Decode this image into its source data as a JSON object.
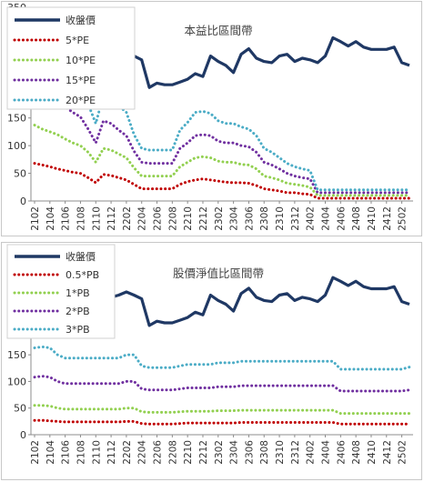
{
  "chart_data": [
    {
      "type": "line",
      "title": "本益比區間帶",
      "ylim": [
        0,
        350
      ],
      "yticks": [
        0,
        50,
        100,
        150,
        200,
        250,
        300,
        350
      ],
      "grid": false,
      "legend_placement": "top-left",
      "x": [
        "2102",
        "2103",
        "2104",
        "2105",
        "2106",
        "2107",
        "2108",
        "2109",
        "2110",
        "2111",
        "2112",
        "2201",
        "2202",
        "2203",
        "2204",
        "2205",
        "2206",
        "2207",
        "2208",
        "2209",
        "2210",
        "2211",
        "2212",
        "2301",
        "2302",
        "2303",
        "2304",
        "2305",
        "2306",
        "2307",
        "2308",
        "2309",
        "2310",
        "2311",
        "2312",
        "2401",
        "2402",
        "2403",
        "2404",
        "2405",
        "2406",
        "2407",
        "2408",
        "2409",
        "2410",
        "2411",
        "2412",
        "2501",
        "2502",
        "2503"
      ],
      "xticks": [
        "2102",
        "2104",
        "2106",
        "2108",
        "2110",
        "2112",
        "2202",
        "2204",
        "2206",
        "2208",
        "2210",
        "2212",
        "2302",
        "2304",
        "2306",
        "2308",
        "2310",
        "2312",
        "2402",
        "2404",
        "2406",
        "2408",
        "2410",
        "2412",
        "2502"
      ],
      "series": [
        {
          "name": "收盤價",
          "color": "#1f3864",
          "style": "solid",
          "values": [
            258,
            262,
            268,
            265,
            263,
            262,
            260,
            258,
            255,
            262,
            258,
            262,
            268,
            262,
            255,
            205,
            213,
            210,
            210,
            215,
            220,
            230,
            225,
            262,
            252,
            245,
            232,
            265,
            275,
            258,
            252,
            250,
            262,
            265,
            252,
            258,
            255,
            250,
            262,
            295,
            288,
            280,
            288,
            278,
            274,
            274,
            274,
            278,
            250,
            245
          ]
        },
        {
          "name": "5*PE",
          "color": "#c00000",
          "style": "dotted",
          "values": [
            68,
            65,
            62,
            58,
            55,
            52,
            50,
            42,
            33,
            48,
            46,
            42,
            38,
            30,
            22,
            22,
            22,
            22,
            22,
            30,
            35,
            38,
            40,
            38,
            36,
            34,
            33,
            33,
            32,
            28,
            22,
            20,
            18,
            15,
            15,
            13,
            12,
            5,
            5,
            5,
            5,
            5,
            5,
            5,
            5,
            5,
            5,
            5,
            5,
            5
          ]
        },
        {
          "name": "10*PE",
          "color": "#92d050",
          "style": "dotted",
          "values": [
            137,
            130,
            125,
            120,
            112,
            105,
            100,
            88,
            70,
            95,
            92,
            85,
            78,
            60,
            45,
            45,
            45,
            45,
            45,
            62,
            70,
            78,
            80,
            78,
            72,
            70,
            70,
            66,
            65,
            58,
            45,
            42,
            38,
            32,
            30,
            28,
            25,
            10,
            10,
            10,
            10,
            10,
            10,
            10,
            10,
            10,
            10,
            10,
            10,
            10
          ]
        },
        {
          "name": "15*PE",
          "color": "#7030a0",
          "style": "dotted",
          "values": [
            205,
            195,
            188,
            180,
            170,
            160,
            152,
            130,
            105,
            145,
            140,
            128,
            118,
            90,
            70,
            68,
            68,
            68,
            68,
            95,
            105,
            118,
            120,
            118,
            108,
            105,
            105,
            100,
            98,
            88,
            70,
            65,
            58,
            50,
            45,
            42,
            40,
            15,
            15,
            15,
            15,
            15,
            15,
            15,
            15,
            15,
            15,
            15,
            15,
            15
          ]
        },
        {
          "name": "20*PE",
          "color": "#4bacc6",
          "style": "dotted",
          "values": [
            275,
            262,
            252,
            240,
            228,
            215,
            205,
            175,
            140,
            192,
            185,
            172,
            160,
            120,
            95,
            92,
            92,
            92,
            92,
            128,
            142,
            160,
            162,
            158,
            145,
            140,
            140,
            134,
            130,
            118,
            95,
            88,
            78,
            68,
            62,
            58,
            55,
            20,
            20,
            20,
            20,
            20,
            20,
            20,
            20,
            20,
            20,
            20,
            20,
            20
          ]
        }
      ]
    },
    {
      "type": "line",
      "title": "股價淨值比區間帶",
      "ylim": [
        0,
        350
      ],
      "yticks": [
        0,
        50,
        100,
        150,
        200,
        250,
        300,
        350
      ],
      "grid": false,
      "legend_placement": "top-left",
      "x": [
        "2102",
        "2103",
        "2104",
        "2105",
        "2106",
        "2107",
        "2108",
        "2109",
        "2110",
        "2111",
        "2112",
        "2201",
        "2202",
        "2203",
        "2204",
        "2205",
        "2206",
        "2207",
        "2208",
        "2209",
        "2210",
        "2211",
        "2212",
        "2301",
        "2302",
        "2303",
        "2304",
        "2305",
        "2306",
        "2307",
        "2308",
        "2309",
        "2310",
        "2311",
        "2312",
        "2401",
        "2402",
        "2403",
        "2404",
        "2405",
        "2406",
        "2407",
        "2408",
        "2409",
        "2410",
        "2411",
        "2412",
        "2501",
        "2502",
        "2503"
      ],
      "xticks": [
        "2102",
        "2104",
        "2106",
        "2108",
        "2110",
        "2112",
        "2202",
        "2204",
        "2206",
        "2208",
        "2210",
        "2212",
        "2302",
        "2304",
        "2306",
        "2308",
        "2310",
        "2312",
        "2402",
        "2404",
        "2406",
        "2408",
        "2410",
        "2412",
        "2502"
      ],
      "series": [
        {
          "name": "收盤價",
          "color": "#1f3864",
          "style": "solid",
          "values": [
            258,
            262,
            268,
            265,
            263,
            262,
            260,
            258,
            255,
            262,
            258,
            262,
            268,
            262,
            255,
            205,
            213,
            210,
            210,
            215,
            220,
            230,
            225,
            262,
            252,
            245,
            232,
            265,
            275,
            258,
            252,
            250,
            262,
            265,
            252,
            258,
            255,
            250,
            262,
            295,
            288,
            280,
            288,
            278,
            274,
            274,
            274,
            278,
            250,
            245
          ]
        },
        {
          "name": "0.5*PB",
          "color": "#c00000",
          "style": "dotted",
          "values": [
            27,
            27,
            26,
            25,
            24,
            24,
            24,
            24,
            24,
            24,
            24,
            24,
            25,
            25,
            21,
            20,
            20,
            20,
            20,
            21,
            22,
            22,
            22,
            22,
            22,
            22,
            22,
            23,
            23,
            23,
            23,
            23,
            23,
            23,
            23,
            23,
            23,
            23,
            23,
            23,
            20,
            20,
            20,
            20,
            20,
            20,
            20,
            20,
            20,
            20
          ]
        },
        {
          "name": "1*PB",
          "color": "#92d050",
          "style": "dotted",
          "values": [
            55,
            55,
            54,
            50,
            48,
            48,
            48,
            48,
            48,
            48,
            48,
            48,
            50,
            50,
            43,
            42,
            42,
            42,
            42,
            43,
            44,
            44,
            44,
            44,
            45,
            45,
            45,
            46,
            46,
            46,
            46,
            46,
            46,
            46,
            46,
            46,
            46,
            46,
            46,
            46,
            40,
            40,
            40,
            40,
            40,
            40,
            40,
            40,
            40,
            40
          ]
        },
        {
          "name": "2*PB",
          "color": "#7030a0",
          "style": "dotted",
          "values": [
            108,
            110,
            108,
            100,
            96,
            96,
            96,
            96,
            96,
            96,
            96,
            96,
            100,
            100,
            86,
            84,
            84,
            84,
            84,
            86,
            88,
            88,
            88,
            88,
            90,
            90,
            90,
            92,
            92,
            92,
            92,
            92,
            92,
            92,
            92,
            92,
            92,
            92,
            92,
            92,
            82,
            82,
            82,
            82,
            82,
            82,
            82,
            82,
            82,
            84
          ]
        },
        {
          "name": "3*PB",
          "color": "#4bacc6",
          "style": "dotted",
          "values": [
            163,
            165,
            163,
            150,
            144,
            144,
            144,
            144,
            144,
            144,
            144,
            144,
            150,
            150,
            129,
            126,
            126,
            126,
            126,
            129,
            132,
            132,
            132,
            132,
            135,
            135,
            135,
            138,
            138,
            138,
            138,
            138,
            138,
            138,
            138,
            138,
            138,
            138,
            138,
            138,
            123,
            123,
            123,
            123,
            123,
            123,
            123,
            123,
            123,
            127
          ]
        }
      ]
    }
  ]
}
